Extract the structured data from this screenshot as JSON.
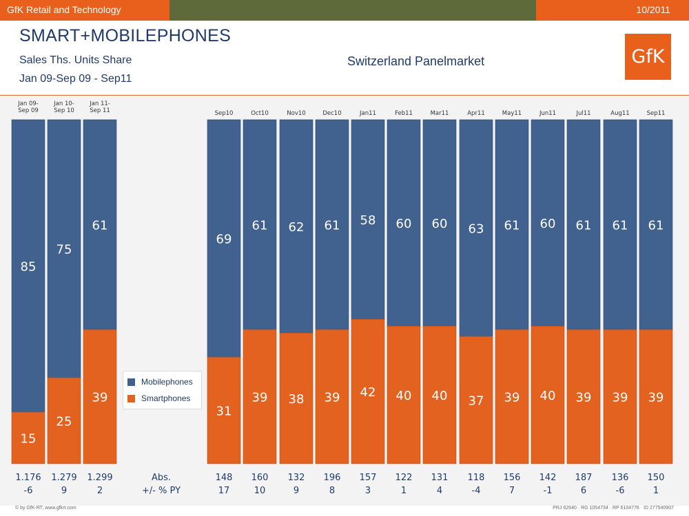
{
  "topbar": {
    "left_text": "GfK Retail and Technology",
    "right_text": "10/2011",
    "colors": {
      "orange": "#e8601c",
      "olive": "#5f6a3a"
    }
  },
  "header": {
    "title": "SMART+MOBILEPHONES",
    "subtitle1": "Sales Ths. Units Share",
    "subtitle2": "Jan 09-Sep 09 - Sep11",
    "market": "Switzerland Panelmarket",
    "logo_text": "GfK"
  },
  "legend": [
    {
      "name": "Mobilephones",
      "color": "#41628e"
    },
    {
      "name": "Smartphones",
      "color": "#e36220"
    }
  ],
  "row_labels": {
    "abs": "Abs.",
    "py": "+/- % PY"
  },
  "footer": {
    "left": "© by GfK-RT, www.gfkrt.com",
    "right": "PRJ 62640 · RG 1054734 · RP 6104776 · ID 277540907"
  },
  "chart_data": {
    "type": "bar",
    "stacked": true,
    "percent": true,
    "categories": [
      "Jan 09-Sep 09",
      "Jan 10-Sep 10",
      "Jan 11-Sep 11",
      "Sep10",
      "Oct10",
      "Nov10",
      "Dec10",
      "Jan11",
      "Feb11",
      "Mar11",
      "Apr11",
      "May11",
      "Jun11",
      "Jul11",
      "Aug11",
      "Sep11"
    ],
    "category_lines": [
      [
        "Jan 09-",
        "Sep 09"
      ],
      [
        "Jan 10-",
        "Sep 10"
      ],
      [
        "Jan 11-",
        "Sep 11"
      ],
      [
        "Sep10"
      ],
      [
        "Oct10"
      ],
      [
        "Nov10"
      ],
      [
        "Dec10"
      ],
      [
        "Jan11"
      ],
      [
        "Feb11"
      ],
      [
        "Mar11"
      ],
      [
        "Apr11"
      ],
      [
        "May11"
      ],
      [
        "Jun11"
      ],
      [
        "Jul11"
      ],
      [
        "Aug11"
      ],
      [
        "Sep11"
      ]
    ],
    "series": [
      {
        "name": "Smartphones",
        "color": "#e36220",
        "values": [
          15,
          25,
          39,
          31,
          39,
          38,
          39,
          42,
          40,
          40,
          37,
          39,
          40,
          39,
          39,
          39
        ]
      },
      {
        "name": "Mobilephones",
        "color": "#41628e",
        "values": [
          85,
          75,
          61,
          69,
          61,
          62,
          61,
          58,
          60,
          60,
          63,
          61,
          60,
          61,
          61,
          61
        ]
      }
    ],
    "abs": [
      "1.176",
      "1.279",
      "1.299",
      "148",
      "160",
      "132",
      "196",
      "157",
      "122",
      "131",
      "118",
      "156",
      "142",
      "187",
      "136",
      "150"
    ],
    "change_py": [
      "-6",
      "9",
      "2",
      "17",
      "10",
      "9",
      "8",
      "3",
      "1",
      "4",
      "-4",
      "7",
      "-1",
      "6",
      "-6",
      "1"
    ],
    "ylim": [
      0,
      100
    ],
    "legend_position": "left-middle"
  }
}
